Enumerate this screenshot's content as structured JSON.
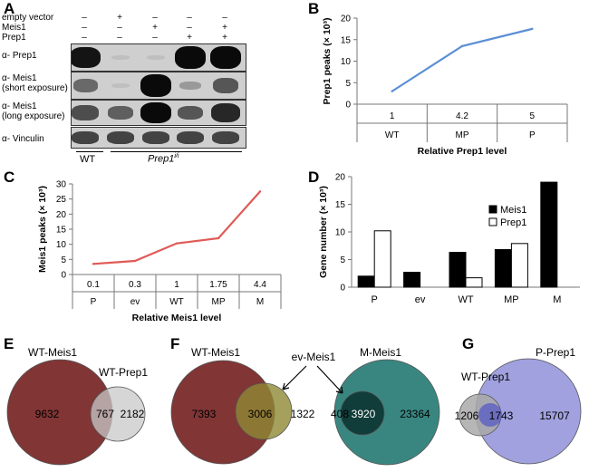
{
  "panels": {
    "A": {
      "label": "A",
      "row_labels": [
        "empty vector",
        "Meis1",
        "Prep1"
      ],
      "matrix": [
        [
          "–",
          "+",
          "–",
          "–",
          "–"
        ],
        [
          "–",
          "–",
          "+",
          "–",
          "+"
        ],
        [
          "–",
          "–",
          "–",
          "+",
          "+"
        ]
      ],
      "blots": [
        {
          "label": "α- Prep1",
          "bands": [
            0.95,
            0.05,
            0.05,
            1.0,
            1.0
          ]
        },
        {
          "label": "α- Meis1\n(short exposure)",
          "bands": [
            0.5,
            0.05,
            1.0,
            0.25,
            0.6
          ]
        },
        {
          "label": "α- Meis1\n(long exposure)",
          "bands": [
            0.65,
            0.55,
            1.0,
            0.6,
            0.85
          ]
        },
        {
          "label": "α- Vinculin",
          "bands": [
            0.7,
            0.7,
            0.7,
            0.7,
            0.7
          ]
        }
      ],
      "group_wt": "WT",
      "group_ko": "Prep1",
      "group_ko_sup": "i/i"
    },
    "B": {
      "label": "B"
    },
    "C": {
      "label": "C"
    },
    "D": {
      "label": "D"
    },
    "E": {
      "label": "E"
    },
    "F": {
      "label": "F"
    },
    "G": {
      "label": "G"
    }
  },
  "chart_data": [
    {
      "id": "B",
      "type": "line",
      "ylabel": "Prep1 peaks (× 10³)",
      "xlabel": "Relative Prep1 level",
      "ylim": [
        0,
        20
      ],
      "yticks": [
        0,
        5,
        10,
        15,
        20
      ],
      "levels": [
        "1",
        "4.2",
        "5"
      ],
      "categories": [
        "WT",
        "MP",
        "P"
      ],
      "values": [
        3,
        13.5,
        17.5
      ],
      "color": "#5b8fd6"
    },
    {
      "id": "C",
      "type": "line",
      "ylabel": "Meis1 peaks (× 10³)",
      "xlabel": "Relative Meis1 level",
      "ylim": [
        0,
        30
      ],
      "yticks": [
        0,
        5,
        10,
        15,
        20,
        25,
        30
      ],
      "levels": [
        "0.1",
        "0.3",
        "1",
        "1.75",
        "4.4"
      ],
      "categories": [
        "P",
        "ev",
        "WT",
        "MP",
        "M"
      ],
      "values": [
        3.5,
        4.5,
        10.3,
        12,
        27.5
      ],
      "color": "#e05a56"
    },
    {
      "id": "D",
      "type": "bar",
      "ylabel": "Gene number (× 10³)",
      "ylim": [
        0,
        20
      ],
      "yticks": [
        0,
        5,
        10,
        15,
        20
      ],
      "categories": [
        "P",
        "ev",
        "WT",
        "MP",
        "M"
      ],
      "series": [
        {
          "name": "Meis1",
          "values": [
            2,
            2.7,
            6.3,
            6.8,
            19
          ],
          "fill": "#000000"
        },
        {
          "name": "Prep1",
          "values": [
            10.2,
            null,
            1.7,
            7.9,
            null
          ],
          "fill": "#ffffff"
        }
      ]
    },
    {
      "id": "E",
      "type": "venn",
      "sets": [
        {
          "name": "WT-Meis1",
          "only": 9632,
          "color": "#7a2a2a"
        },
        {
          "name": "WT-Prep1",
          "only": 2182,
          "color": "#c8c8c8"
        }
      ],
      "overlap": 767
    },
    {
      "id": "F",
      "type": "venn",
      "sets": [
        {
          "name": "WT-Meis1",
          "only": 7393,
          "color": "#7a2a2a"
        },
        {
          "name": "ev-Meis1",
          "only": 1322,
          "color": "#8f8a35"
        }
      ],
      "overlap": 3006,
      "second": {
        "sets": [
          {
            "name": "ev-Meis1",
            "only": 408,
            "color": "#8f8a35"
          },
          {
            "name": "M-Meis1",
            "only": 23364,
            "color": "#2e7f7a"
          }
        ],
        "overlap": 3920
      },
      "pointer_label": "ev-Meis1"
    },
    {
      "id": "G",
      "type": "venn",
      "sets": [
        {
          "name": "WT-Prep1",
          "only": 1206,
          "color": "#a9a9a9"
        },
        {
          "name": "P-Prep1",
          "only": 15707,
          "color": "#8f90d8"
        }
      ],
      "overlap": 1743
    }
  ]
}
